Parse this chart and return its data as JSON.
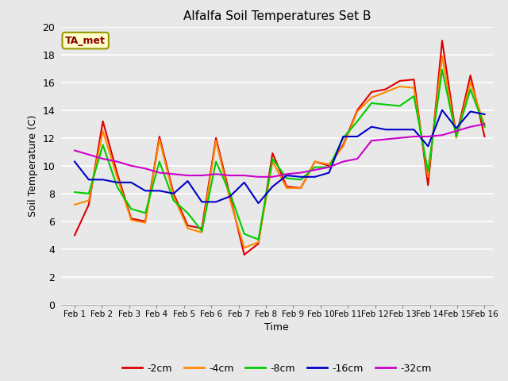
{
  "title": "Alfalfa Soil Temperatures Set B",
  "xlabel": "Time",
  "ylabel": "Soil Temperature (C)",
  "ylim": [
    0,
    20
  ],
  "yticks": [
    0,
    2,
    4,
    6,
    8,
    10,
    12,
    14,
    16,
    18,
    20
  ],
  "x_labels": [
    "Feb 1",
    "Feb 2",
    "Feb 3",
    "Feb 4",
    "Feb 5",
    "Feb 6",
    "Feb 7",
    "Feb 8",
    "Feb 9",
    "Feb 10",
    "Feb 11",
    "Feb 12",
    "Feb 13",
    "Feb 14",
    "Feb 15",
    "Feb 16"
  ],
  "annotation": "TA_met",
  "background_color": "#e8e8e8",
  "plot_bg_color": "#e8e8e8",
  "series": {
    "-2cm": {
      "color": "#dd0000",
      "data": [
        5.0,
        7.2,
        13.2,
        9.5,
        6.2,
        6.0,
        12.1,
        8.0,
        5.7,
        5.5,
        12.0,
        7.8,
        3.6,
        4.4,
        10.9,
        8.5,
        8.4,
        10.3,
        10.0,
        11.5,
        14.0,
        15.3,
        15.5,
        16.1,
        16.2,
        8.6,
        19.0,
        12.1,
        16.5,
        12.1
      ]
    },
    "-4cm": {
      "color": "#ff8800",
      "data": [
        7.2,
        7.5,
        12.5,
        9.2,
        6.1,
        5.9,
        11.9,
        7.8,
        5.5,
        5.2,
        11.8,
        7.5,
        4.1,
        4.5,
        10.3,
        8.4,
        8.4,
        10.3,
        10.1,
        11.4,
        13.9,
        14.9,
        15.3,
        15.7,
        15.6,
        9.2,
        17.9,
        12.0,
        16.0,
        12.9
      ]
    },
    "-8cm": {
      "color": "#00cc00",
      "data": [
        8.1,
        8.0,
        11.5,
        8.5,
        6.9,
        6.6,
        10.3,
        7.5,
        6.6,
        5.3,
        10.3,
        8.0,
        5.1,
        4.7,
        10.5,
        9.1,
        9.0,
        9.9,
        9.9,
        12.0,
        13.2,
        14.5,
        14.4,
        14.3,
        15.0,
        9.6,
        16.9,
        12.1,
        15.5,
        12.8
      ]
    },
    "-16cm": {
      "color": "#0000cc",
      "data": [
        10.3,
        9.0,
        9.0,
        8.8,
        8.8,
        8.2,
        8.2,
        8.0,
        8.9,
        7.4,
        7.4,
        7.8,
        8.8,
        7.3,
        8.5,
        9.3,
        9.2,
        9.2,
        9.5,
        12.1,
        12.1,
        12.8,
        12.6,
        12.6,
        12.6,
        11.4,
        14.0,
        12.7,
        13.9,
        13.7
      ]
    },
    "-32cm": {
      "color": "#cc00cc",
      "data": [
        11.1,
        10.8,
        10.5,
        10.3,
        10.0,
        9.8,
        9.5,
        9.4,
        9.3,
        9.3,
        9.4,
        9.3,
        9.3,
        9.2,
        9.2,
        9.4,
        9.5,
        9.7,
        9.9,
        10.3,
        10.5,
        11.8,
        11.9,
        12.0,
        12.1,
        12.1,
        12.2,
        12.5,
        12.8,
        13.0
      ]
    }
  },
  "legend_entries": [
    "-2cm",
    "-4cm",
    "-8cm",
    "-16cm",
    "-32cm"
  ],
  "legend_colors": [
    "#dd0000",
    "#ff8800",
    "#00cc00",
    "#0000cc",
    "#cc00cc"
  ],
  "figsize": [
    6.4,
    4.8
  ],
  "dpi": 100
}
